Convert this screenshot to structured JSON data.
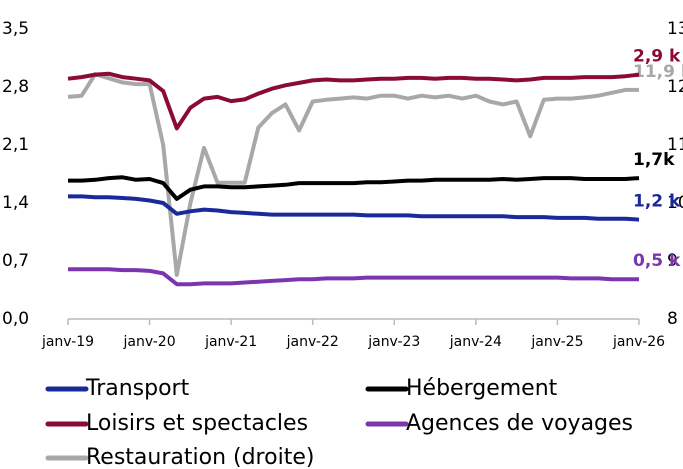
{
  "chart_data": {
    "type": "line",
    "x": [
      "2019-01",
      "2019-03",
      "2019-05",
      "2019-07",
      "2019-09",
      "2019-11",
      "2020-01",
      "2020-03",
      "2020-05",
      "2020-07",
      "2020-09",
      "2020-11",
      "2021-01",
      "2021-03",
      "2021-05",
      "2021-07",
      "2021-09",
      "2021-11",
      "2022-01",
      "2022-03",
      "2022-05",
      "2022-07",
      "2022-09",
      "2022-11",
      "2023-01",
      "2023-03",
      "2023-05",
      "2023-07",
      "2023-09",
      "2023-11",
      "2024-01",
      "2024-03",
      "2024-05",
      "2024-07",
      "2024-09",
      "2024-11",
      "2025-01",
      "2025-03",
      "2025-05",
      "2025-07",
      "2025-09",
      "2025-11",
      "2026-01"
    ],
    "xlim": [
      "2019-01",
      "2026-01"
    ],
    "xticks": [
      {
        "value": "2019-01",
        "label": "janv-19"
      },
      {
        "value": "2020-01",
        "label": "janv-20"
      },
      {
        "value": "2021-01",
        "label": "janv-21"
      },
      {
        "value": "2022-01",
        "label": "janv-22"
      },
      {
        "value": "2023-01",
        "label": "janv-23"
      },
      {
        "value": "2024-01",
        "label": "janv-24"
      },
      {
        "value": "2025-01",
        "label": "janv-25"
      },
      {
        "value": "2026-01",
        "label": "janv-26"
      }
    ],
    "ylim": [
      0,
      3.5
    ],
    "yticks": [
      {
        "value": 0,
        "label": "0,0"
      },
      {
        "value": 0.7,
        "label": "0,7"
      },
      {
        "value": 1.4,
        "label": "1,4"
      },
      {
        "value": 2.1,
        "label": "2,1"
      },
      {
        "value": 2.8,
        "label": "2,8"
      },
      {
        "value": 3.5,
        "label": "3,5"
      }
    ],
    "y2lim": [
      8,
      13
    ],
    "y2ticks": [
      8,
      9,
      10,
      11,
      12,
      13
    ],
    "grid": false,
    "series": [
      {
        "name": "Transport",
        "color": "#1b2a9a",
        "end_label": "1,2 k",
        "values": [
          1.48,
          1.48,
          1.47,
          1.47,
          1.46,
          1.45,
          1.43,
          1.4,
          1.27,
          1.3,
          1.32,
          1.31,
          1.29,
          1.28,
          1.27,
          1.26,
          1.26,
          1.26,
          1.26,
          1.26,
          1.26,
          1.26,
          1.25,
          1.25,
          1.25,
          1.25,
          1.24,
          1.24,
          1.24,
          1.24,
          1.24,
          1.24,
          1.24,
          1.23,
          1.23,
          1.23,
          1.22,
          1.22,
          1.22,
          1.21,
          1.21,
          1.21,
          1.2
        ]
      },
      {
        "name": "Hébergement",
        "color": "#000000",
        "end_label": "1,7k",
        "values": [
          1.67,
          1.67,
          1.68,
          1.7,
          1.71,
          1.68,
          1.69,
          1.64,
          1.45,
          1.56,
          1.6,
          1.6,
          1.59,
          1.59,
          1.6,
          1.61,
          1.62,
          1.64,
          1.64,
          1.64,
          1.64,
          1.64,
          1.65,
          1.65,
          1.66,
          1.67,
          1.67,
          1.68,
          1.68,
          1.68,
          1.68,
          1.68,
          1.69,
          1.68,
          1.69,
          1.7,
          1.7,
          1.7,
          1.69,
          1.69,
          1.69,
          1.69,
          1.7
        ]
      },
      {
        "name": "Loisirs et spectacles",
        "color": "#8b0b37",
        "end_label": "2,9 k",
        "values": [
          2.9,
          2.92,
          2.95,
          2.96,
          2.92,
          2.9,
          2.88,
          2.75,
          2.3,
          2.55,
          2.66,
          2.68,
          2.63,
          2.65,
          2.72,
          2.78,
          2.82,
          2.85,
          2.88,
          2.89,
          2.88,
          2.88,
          2.89,
          2.9,
          2.9,
          2.91,
          2.91,
          2.9,
          2.91,
          2.91,
          2.9,
          2.9,
          2.89,
          2.88,
          2.89,
          2.91,
          2.91,
          2.91,
          2.92,
          2.92,
          2.92,
          2.93,
          2.95
        ]
      },
      {
        "name": "Agences de voyages",
        "color": "#7a36b1",
        "end_label": "0,5 k",
        "values": [
          0.6,
          0.6,
          0.6,
          0.6,
          0.59,
          0.59,
          0.58,
          0.55,
          0.42,
          0.42,
          0.43,
          0.43,
          0.43,
          0.44,
          0.45,
          0.46,
          0.47,
          0.48,
          0.48,
          0.49,
          0.49,
          0.49,
          0.5,
          0.5,
          0.5,
          0.5,
          0.5,
          0.5,
          0.5,
          0.5,
          0.5,
          0.5,
          0.5,
          0.5,
          0.5,
          0.5,
          0.5,
          0.49,
          0.49,
          0.49,
          0.48,
          0.48,
          0.48
        ]
      },
      {
        "name": "Restauration (droite)",
        "color": "#a8a8a8",
        "axis": "y2",
        "end_label": "11,9 k",
        "values": [
          11.83,
          11.85,
          12.22,
          12.15,
          12.08,
          12.05,
          12.05,
          11.0,
          8.76,
          10.0,
          10.95,
          10.35,
          10.35,
          10.35,
          11.3,
          11.55,
          11.7,
          11.25,
          11.75,
          11.78,
          11.8,
          11.82,
          11.8,
          11.85,
          11.85,
          11.8,
          11.85,
          11.82,
          11.85,
          11.8,
          11.85,
          11.75,
          11.7,
          11.75,
          11.15,
          11.78,
          11.8,
          11.8,
          11.82,
          11.85,
          11.9,
          11.95,
          11.95
        ]
      }
    ]
  }
}
